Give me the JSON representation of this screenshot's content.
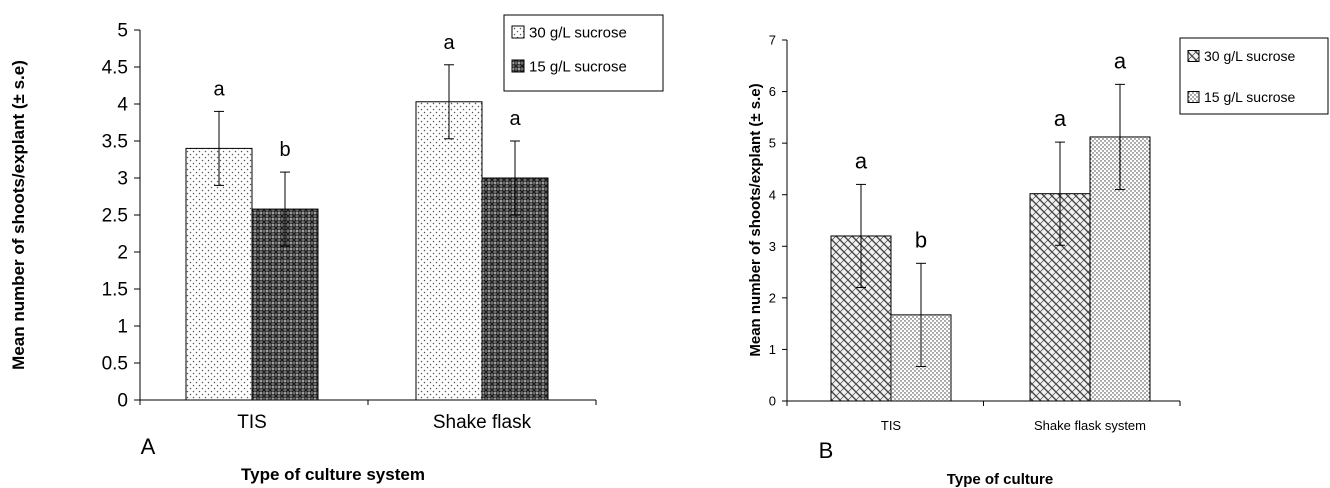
{
  "chart_data": [
    {
      "type": "bar",
      "panel_label": "A",
      "xlabel": "Type of culture system",
      "ylabel": "Mean number of shoots/explant (± s.e)",
      "categories": [
        "TIS",
        "Shake flask"
      ],
      "ylim": [
        0,
        5
      ],
      "yticks": [
        "0",
        "0.5",
        "1",
        "1.5",
        "2",
        "2.5",
        "3",
        "3.5",
        "4",
        "4.5",
        "5"
      ],
      "grid": false,
      "legend_position": "top-right",
      "series": [
        {
          "name": "30 g/L sucrose",
          "values": [
            3.4,
            4.03
          ],
          "errors": [
            0.5,
            0.5
          ],
          "letters": [
            "a",
            "a"
          ],
          "pattern": "dots-light"
        },
        {
          "name": "15 g/L sucrose",
          "values": [
            2.58,
            3.0
          ],
          "errors": [
            0.5,
            0.5
          ],
          "letters": [
            "b",
            "a"
          ],
          "pattern": "crosshatch-dark"
        }
      ]
    },
    {
      "type": "bar",
      "panel_label": "B",
      "xlabel": "Type of culture",
      "ylabel": "Mean number of shoots/explant  (± s.e)",
      "categories": [
        "TIS",
        "Shake flask system"
      ],
      "ylim": [
        0,
        7
      ],
      "yticks": [
        "0",
        "1",
        "2",
        "3",
        "4",
        "5",
        "6",
        "7"
      ],
      "grid": false,
      "legend_position": "top-right",
      "series": [
        {
          "name": "30 g/L sucrose",
          "values": [
            3.2,
            4.02
          ],
          "errors": [
            1.0,
            1.0
          ],
          "letters": [
            "a",
            "a"
          ],
          "pattern": "weave"
        },
        {
          "name": "15 g/L sucrose",
          "values": [
            1.67,
            5.12
          ],
          "errors": [
            1.0,
            1.02
          ],
          "letters": [
            "b",
            "a"
          ],
          "pattern": "dots-dense"
        }
      ]
    }
  ]
}
